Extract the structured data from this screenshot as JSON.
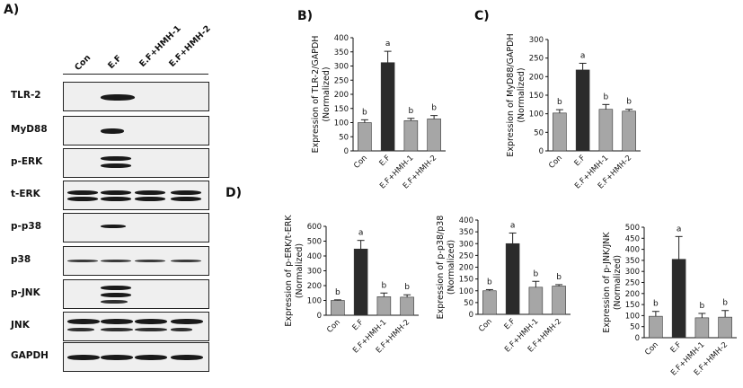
{
  "figure": {
    "panel_a": "A)",
    "panel_b": "B)",
    "panel_c": "C)",
    "panel_d": "D)",
    "lane_labels": [
      "Con",
      "E.F",
      "E.F+HMH-1",
      "E.F+HMH-2"
    ],
    "blots": [
      {
        "label": "TLR-2"
      },
      {
        "label": "MyD88"
      },
      {
        "label": "p-ERK"
      },
      {
        "label": "t-ERK"
      },
      {
        "label": "p-p38"
      },
      {
        "label": "p38"
      },
      {
        "label": "p-JNK"
      },
      {
        "label": "JNK"
      },
      {
        "label": "GAPDH"
      }
    ]
  },
  "colors": {
    "control": "#a6a6a6",
    "ef": "#2b2b2b",
    "treated": "#a6a6a6",
    "axis": "#111111"
  },
  "chart_data": [
    {
      "id": "B",
      "type": "bar",
      "categories": [
        "Con",
        "E.F",
        "E.F+HMH-1",
        "E.F+HMH-2"
      ],
      "values": [
        100,
        312,
        107,
        113
      ],
      "errors": [
        10,
        40,
        8,
        12
      ],
      "sig": [
        "b",
        "a",
        "b",
        "b"
      ],
      "ylabel": [
        "Expression of TLR-2/GAPDH",
        "(Normalized)"
      ],
      "ylim": [
        0,
        400
      ],
      "yticks": [
        0,
        50,
        100,
        150,
        200,
        250,
        300,
        350,
        400
      ]
    },
    {
      "id": "C",
      "type": "bar",
      "categories": [
        "Con",
        "E.F",
        "E.F+HMH-1",
        "E.F+HMH-2"
      ],
      "values": [
        102,
        218,
        112,
        107
      ],
      "errors": [
        9,
        18,
        13,
        5
      ],
      "sig": [
        "b",
        "a",
        "b",
        "b"
      ],
      "ylabel": [
        "Expression of MyD88/GAPDH",
        "(Normalized)"
      ],
      "ylim": [
        0,
        300
      ],
      "yticks": [
        0,
        50,
        100,
        150,
        200,
        250,
        300
      ]
    },
    {
      "id": "D1",
      "type": "bar",
      "categories": [
        "Con",
        "E.F",
        "E.F+HMH-1",
        "E.F+HMH-2"
      ],
      "values": [
        100,
        447,
        125,
        122
      ],
      "errors": [
        4,
        58,
        25,
        16
      ],
      "sig": [
        "b",
        "a",
        "b",
        "b"
      ],
      "ylabel": [
        "Expression of p-ERK/t-ERK",
        "(Normalized)"
      ],
      "ylim": [
        0,
        600
      ],
      "yticks": [
        0,
        100,
        200,
        300,
        400,
        500,
        600
      ]
    },
    {
      "id": "D2",
      "type": "bar",
      "categories": [
        "Con",
        "E.F",
        "E.F+HMH-1",
        "E.F+HMH-2"
      ],
      "values": [
        100,
        300,
        115,
        120
      ],
      "errors": [
        5,
        45,
        25,
        6
      ],
      "sig": [
        "b",
        "a",
        "b",
        "b"
      ],
      "ylabel": [
        "Expression of p-p38/p38",
        "(Normalized)"
      ],
      "ylim": [
        0,
        400
      ],
      "yticks": [
        0,
        50,
        100,
        150,
        200,
        250,
        300,
        350,
        400
      ]
    },
    {
      "id": "D3",
      "type": "bar",
      "categories": [
        "Con",
        "E.F",
        "E.F+HMH-1",
        "E.F+HMH-2"
      ],
      "values": [
        97,
        355,
        90,
        93
      ],
      "errors": [
        22,
        103,
        20,
        30
      ],
      "sig": [
        "b",
        "a",
        "b",
        "b"
      ],
      "ylabel": [
        "Expression of p-JNK/JNK",
        "(Normalized)"
      ],
      "ylim": [
        0,
        500
      ],
      "yticks": [
        0,
        50,
        100,
        150,
        200,
        250,
        300,
        350,
        400,
        450,
        500
      ]
    }
  ]
}
